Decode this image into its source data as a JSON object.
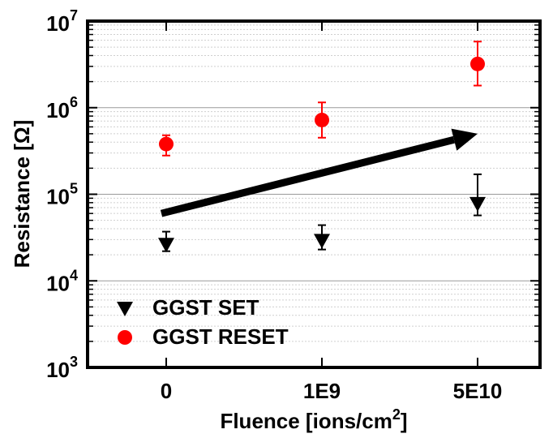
{
  "chart_data": {
    "type": "scatter",
    "xlabel": "Fluence [ions/cm",
    "xlabel_sup": "2",
    "xlabel_end": "]",
    "ylabel": "Resistance [Ω]",
    "categories": [
      "0",
      "1E9",
      "5E10"
    ],
    "y_scale": "log",
    "ylim": [
      1000,
      10000000
    ],
    "y_ticks": [
      {
        "base": "10",
        "exp": "3",
        "value": 1000
      },
      {
        "base": "10",
        "exp": "4",
        "value": 10000
      },
      {
        "base": "10",
        "exp": "5",
        "value": 100000
      },
      {
        "base": "10",
        "exp": "6",
        "value": 1000000
      },
      {
        "base": "10",
        "exp": "7",
        "value": 10000000
      }
    ],
    "grid": "minor horizontal gridlines on log scale",
    "legend_position": "bottom-left",
    "series": [
      {
        "name": "GGST SET",
        "marker": "triangle-down",
        "color": "#000000",
        "values": [
          27000,
          30000,
          80000
        ],
        "err_low": [
          22000,
          23000,
          57000
        ],
        "err_high": [
          37000,
          44000,
          170000
        ]
      },
      {
        "name": "GGST RESET",
        "marker": "circle",
        "color": "#ff0000",
        "values": [
          380000,
          720000,
          3200000
        ],
        "err_low": [
          280000,
          450000,
          1800000
        ],
        "err_high": [
          480000,
          1150000,
          5800000
        ]
      }
    ],
    "annotations": [
      {
        "type": "arrow",
        "from": {
          "x": "0",
          "y": 60000
        },
        "to": {
          "x": "5E10",
          "y": 500000
        }
      }
    ]
  }
}
